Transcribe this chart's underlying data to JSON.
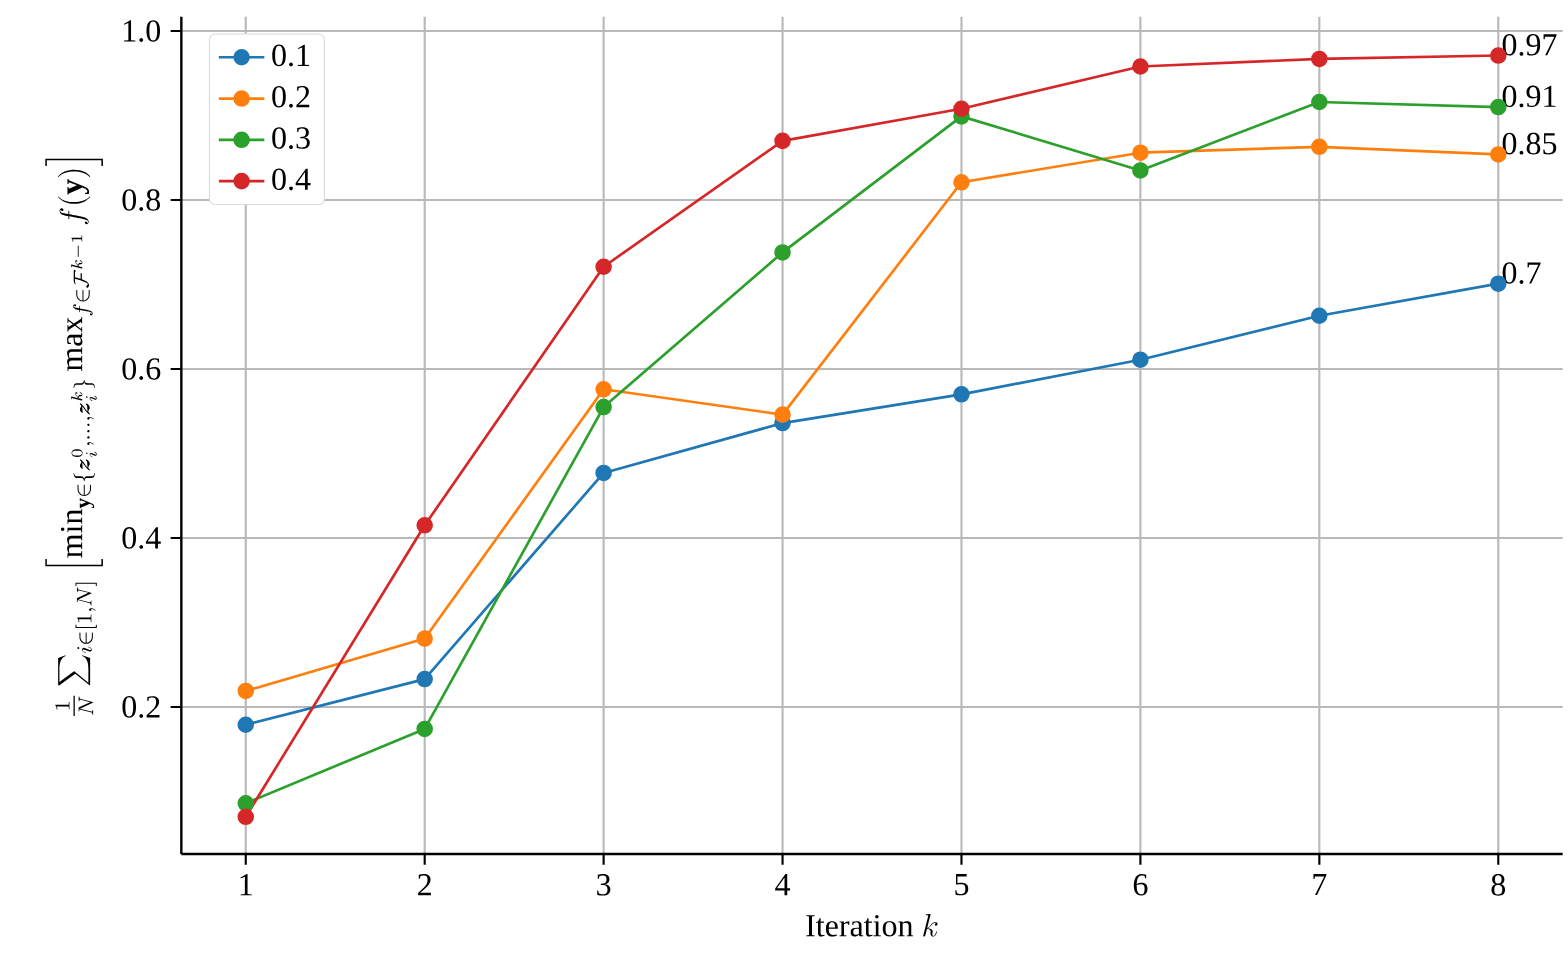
{
  "chart_data": {
    "type": "line",
    "xlabel": "\\mathrm{Iteration}\\ k",
    "ylabel": "\\frac{1}{N}\\sum_{i\\in[1,N]}\\left[\\min_{\\mathbf{y}\\in\\{\\boldsymbol{z}_i^0,\\ldots,\\boldsymbol{z}_i^k\\}}\\max_{f\\in\\mathcal{F}^{k-1}} f(\\mathbf{y})\\right]",
    "x": [
      1,
      2,
      3,
      4,
      5,
      6,
      7,
      8
    ],
    "series": [
      {
        "name": "0.1",
        "color": "#1f77b4",
        "values": [
          0.179,
          0.233,
          0.477,
          0.536,
          0.57,
          0.611,
          0.663,
          0.701
        ],
        "value_labels": [
          null,
          null,
          null,
          null,
          null,
          null,
          null,
          "0.7"
        ]
      },
      {
        "name": "0.2",
        "color": "#ff7f0e",
        "values": [
          0.219,
          0.281,
          0.576,
          0.546,
          0.821,
          0.856,
          0.863,
          0.854
        ],
        "value_labels": [
          null,
          null,
          null,
          null,
          null,
          null,
          null,
          "0.85"
        ]
      },
      {
        "name": "0.3",
        "color": "#2ca02c",
        "values": [
          0.086,
          0.174,
          0.555,
          0.738,
          0.899,
          0.835,
          0.916,
          0.91
        ],
        "value_labels": [
          null,
          null,
          null,
          null,
          null,
          null,
          null,
          "0.91"
        ]
      },
      {
        "name": "0.4",
        "color": "#d62728",
        "values": [
          0.07,
          0.415,
          0.721,
          0.87,
          0.908,
          0.958,
          0.967,
          0.971
        ],
        "value_labels": [
          null,
          null,
          null,
          null,
          null,
          null,
          null,
          "0.97"
        ]
      }
    ],
    "xlim": [
      0.64,
      8.36
    ],
    "ylim": [
      0.026,
      1.017
    ],
    "xticks": [
      1,
      2,
      3,
      4,
      5,
      6,
      7,
      8
    ],
    "yticks": [
      0.2,
      0.4,
      0.6,
      0.8,
      {
        "value": 1.0,
        "label": "1.0"
      }
    ],
    "grid": true,
    "legend": "top left",
    "marker": "circle",
    "line_style": "solid"
  }
}
